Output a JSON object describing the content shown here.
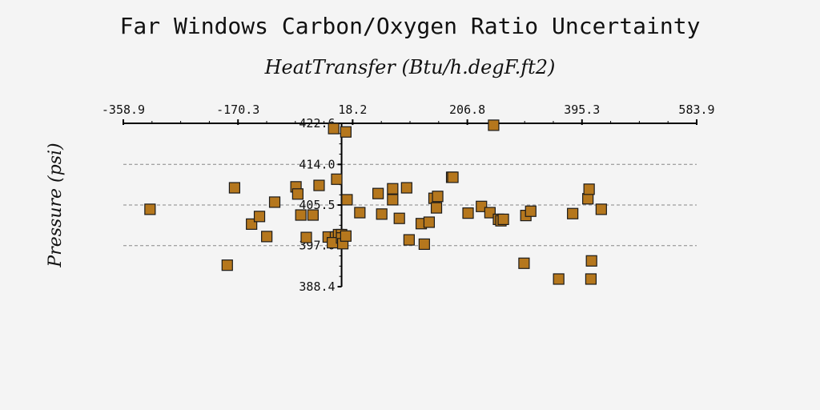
{
  "chart_data": {
    "type": "scatter",
    "title": "Far Windows Carbon/Oxygen Ratio Uncertainty",
    "xlabel": "HeatTransfer (Btu/h.degF.ft2)",
    "ylabel": "Pressure (psi)",
    "xlim": [
      -358.9,
      583.9
    ],
    "ylim": [
      388.4,
      422.6
    ],
    "x_ticks": [
      "-358.9",
      "-170.3",
      "18.2",
      "206.8",
      "395.3",
      "583.9"
    ],
    "y_ticks": [
      "388.4",
      "397.0",
      "405.5",
      "414.0",
      "422.6"
    ],
    "grid": "horizontal dashed",
    "marker": "square",
    "marker_color": "#b5771d",
    "series": [
      {
        "points": [
          [
            -315,
            404.6
          ],
          [
            -188,
            392.9
          ],
          [
            -176,
            409.1
          ],
          [
            -148,
            401.5
          ],
          [
            -135,
            403.1
          ],
          [
            -123,
            398.9
          ],
          [
            -110,
            406.1
          ],
          [
            -75,
            409.3
          ],
          [
            -72,
            407.8
          ],
          [
            -67,
            403.4
          ],
          [
            -37,
            409.6
          ],
          [
            -58,
            398.7
          ],
          [
            -47,
            403.4
          ],
          [
            -8,
            410.9
          ],
          [
            -22,
            398.8
          ],
          [
            -13,
            421.5
          ],
          [
            -10,
            398.8
          ],
          [
            -5,
            399.3
          ],
          [
            0,
            399.3
          ],
          [
            -15,
            397.6
          ],
          [
            0,
            398.6
          ],
          [
            2,
            397.4
          ],
          [
            7,
            399.0
          ],
          [
            7,
            420.8
          ],
          [
            9,
            406.6
          ],
          [
            30,
            403.9
          ],
          [
            60,
            407.9
          ],
          [
            66,
            403.6
          ],
          [
            84,
            408.9
          ],
          [
            84,
            406.6
          ],
          [
            95,
            402.7
          ],
          [
            107,
            409.1
          ],
          [
            111,
            398.2
          ],
          [
            131,
            401.6
          ],
          [
            136,
            397.3
          ],
          [
            144,
            401.9
          ],
          [
            152,
            406.9
          ],
          [
            156,
            404.9
          ],
          [
            158,
            407.3
          ],
          [
            181,
            411.3
          ],
          [
            183,
            411.3
          ],
          [
            208,
            403.8
          ],
          [
            230,
            405.2
          ],
          [
            244,
            403.9
          ],
          [
            250,
            422.2
          ],
          [
            258,
            402.5
          ],
          [
            262,
            402.2
          ],
          [
            266,
            402.5
          ],
          [
            300,
            393.3
          ],
          [
            303,
            403.3
          ],
          [
            311,
            404.2
          ],
          [
            357,
            390.0
          ],
          [
            380,
            403.7
          ],
          [
            405,
            406.8
          ],
          [
            407,
            408.8
          ],
          [
            411,
            393.8
          ],
          [
            410,
            390.0
          ],
          [
            427,
            404.6
          ]
        ]
      }
    ]
  }
}
